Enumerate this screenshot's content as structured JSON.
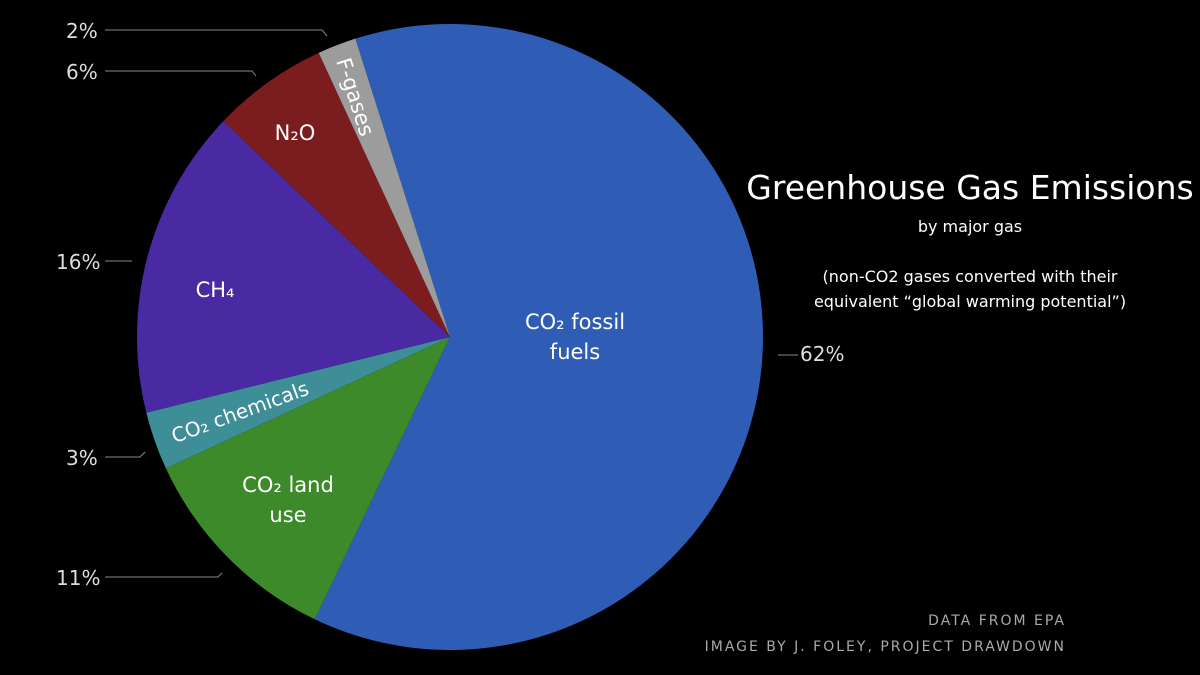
{
  "chart_data": {
    "type": "pie",
    "title": "Greenhouse Gas Emissions",
    "subtitle": "by major gas",
    "note": "(non-CO2 gases converted with their equivalent “global warming potential”)",
    "credits": [
      "DATA FROM EPA",
      "IMAGE BY J. FOLEY, PROJECT DRAWDOWN"
    ],
    "categories": [
      "CO₂ fossil fuels",
      "CO₂ land use",
      "CO₂ chemicals",
      "CH₄",
      "N₂O",
      "F-gases"
    ],
    "values": [
      62,
      11,
      3,
      16,
      6,
      2
    ],
    "value_labels": [
      "62%",
      "11%",
      "3%",
      "16%",
      "6%",
      "2%"
    ],
    "colors": [
      "#2f5db5",
      "#3d8a2b",
      "#3e8e98",
      "#4a2aa3",
      "#7b1c1e",
      "#9c9c9c"
    ]
  }
}
